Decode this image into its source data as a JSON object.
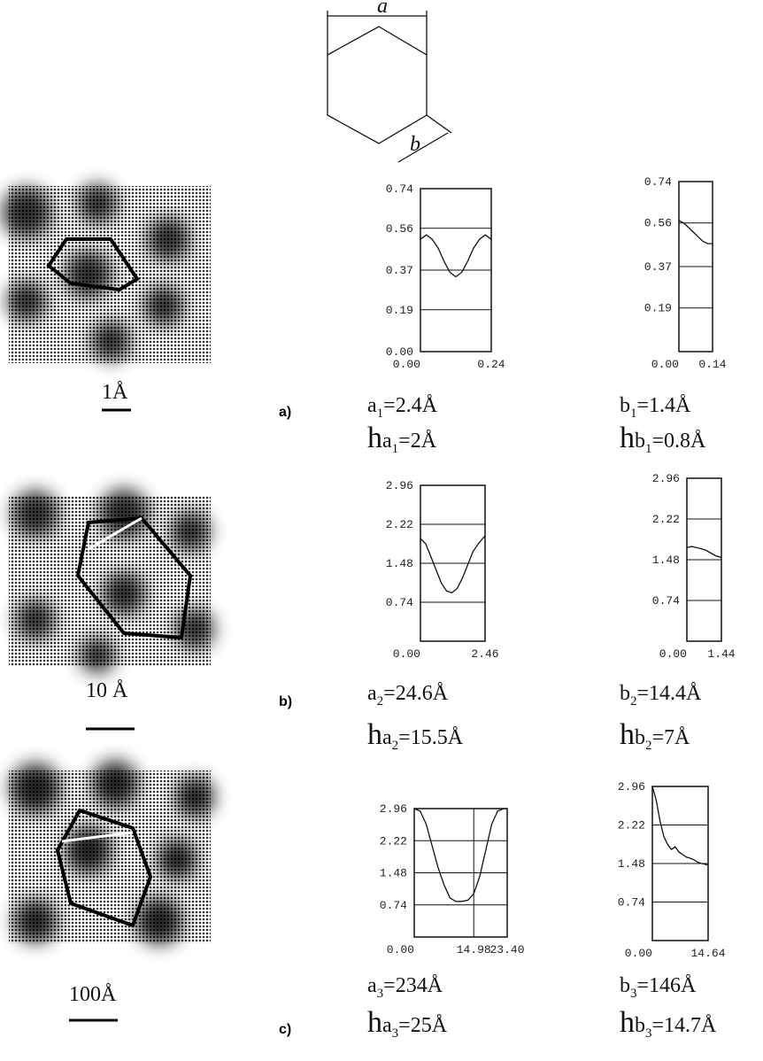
{
  "diagram": {
    "labels": [
      "a",
      "b"
    ]
  },
  "rows": [
    {
      "panel": "a)",
      "scale": "1Å",
      "a_plot": {
        "xlim": [
          0,
          0.24
        ],
        "xticks": [
          {
            "value": 0,
            "label": "0.00"
          },
          0.24
        ],
        "ylim": [
          0,
          0.74
        ],
        "yticks": [
          0.74,
          0.56,
          0.37,
          0.19
        ],
        "y0": {
          "value": 0,
          "label": "0.00"
        },
        "x": [
          0,
          0.02,
          0.04,
          0.06,
          0.08,
          0.1,
          0.12,
          0.14,
          0.16,
          0.18,
          0.2,
          0.22,
          0.24
        ],
        "values": [
          0.51,
          0.53,
          0.51,
          0.47,
          0.41,
          0.36,
          0.34,
          0.36,
          0.41,
          0.47,
          0.51,
          0.53,
          0.51
        ]
      },
      "b_plot": {
        "xlim": [
          0,
          0.14
        ],
        "xticks": [
          {
            "value": 0,
            "label": "0.00"
          },
          0.14
        ],
        "ylim": [
          0,
          0.74
        ],
        "yticks": [
          0.74,
          0.56,
          0.37,
          0.19
        ],
        "x": [
          0,
          0.02,
          0.04,
          0.06,
          0.08,
          0.1,
          0.12,
          0.14
        ],
        "values": [
          0.57,
          0.56,
          0.54,
          0.52,
          0.5,
          0.48,
          0.47,
          0.47
        ]
      },
      "a_text": {
        "sym": "a",
        "sub": "1",
        "eq": "=2.4Å"
      },
      "b_text": {
        "sym": "b",
        "sub": "1",
        "eq": "=1.4Å"
      },
      "ha_text": {
        "h": "h",
        "sym": "a",
        "sub": "1",
        "eq": "=2Å"
      },
      "hb_text": {
        "h": "h",
        "sym": "b",
        "sub": "1",
        "eq": "=0.8Å"
      }
    },
    {
      "panel": "b)",
      "scale": "10 Å",
      "a_plot": {
        "xlim": [
          0,
          2.46
        ],
        "xticks": [
          {
            "value": 0,
            "label": "0.00"
          },
          2.46
        ],
        "ylim": [
          0,
          2.96
        ],
        "yticks": [
          2.96,
          2.22,
          1.48,
          0.74
        ],
        "x": [
          0,
          0.2,
          0.4,
          0.6,
          0.8,
          1.0,
          1.2,
          1.4,
          1.6,
          1.8,
          2.0,
          2.2,
          2.46
        ],
        "values": [
          1.95,
          1.85,
          1.6,
          1.35,
          1.1,
          0.95,
          0.92,
          1.0,
          1.2,
          1.45,
          1.7,
          1.85,
          2.0
        ]
      },
      "b_plot": {
        "xlim": [
          0,
          1.44
        ],
        "xticks": [
          {
            "value": 0,
            "label": "0.00"
          },
          1.44
        ],
        "ylim": [
          0,
          2.96
        ],
        "yticks": [
          2.96,
          2.22,
          1.48,
          0.74
        ],
        "x": [
          0,
          0.2,
          0.4,
          0.6,
          0.8,
          1.0,
          1.2,
          1.44
        ],
        "values": [
          1.7,
          1.72,
          1.7,
          1.68,
          1.65,
          1.6,
          1.55,
          1.52
        ]
      },
      "a_text": {
        "sym": "a",
        "sub": "2",
        "eq": "=24.6Å"
      },
      "b_text": {
        "sym": "b",
        "sub": "2",
        "eq": "=14.4Å"
      },
      "ha_text": {
        "h": "h",
        "sym": "a",
        "sub": "2",
        "eq": "=15.5Å"
      },
      "hb_text": {
        "h": "h",
        "sym": "b",
        "sub": "2",
        "eq": "=7Å"
      }
    },
    {
      "panel": "c)",
      "scale": "100Å",
      "a_plot": {
        "xlim": [
          0,
          23.4
        ],
        "xticks": [
          {
            "value": 0,
            "label": "0.00"
          },
          14.98,
          {
            "value": 23.4,
            "label": "23.40"
          }
        ],
        "ylim": [
          0,
          2.96
        ],
        "yticks": [
          2.96,
          2.22,
          1.48,
          0.74
        ],
        "x": [
          0,
          1.5,
          3,
          4.5,
          6,
          7.5,
          9,
          10.5,
          12,
          13.5,
          15,
          16.5,
          18,
          19.5,
          21,
          22.5,
          23.4
        ],
        "values": [
          2.96,
          2.9,
          2.6,
          2.1,
          1.6,
          1.2,
          0.9,
          0.82,
          0.82,
          0.85,
          1.0,
          1.4,
          2.0,
          2.6,
          2.9,
          2.96,
          2.96
        ]
      },
      "b_plot": {
        "xlim": [
          0,
          14.64
        ],
        "xticks": [
          {
            "value": 0,
            "label": "0.00"
          },
          14.64
        ],
        "ylim": [
          0,
          2.96
        ],
        "yticks": [
          2.96,
          2.22,
          1.48,
          0.74
        ],
        "x": [
          0,
          1,
          2,
          3,
          4,
          5,
          6,
          7,
          8,
          9,
          10,
          11,
          12,
          13,
          14.64
        ],
        "values": [
          2.96,
          2.7,
          2.3,
          2.0,
          1.85,
          1.75,
          1.8,
          1.7,
          1.65,
          1.6,
          1.58,
          1.55,
          1.5,
          1.48,
          1.45
        ]
      },
      "a_text": {
        "sym": "a",
        "sub": "3",
        "eq": "=234Å"
      },
      "b_text": {
        "sym": "b",
        "sub": "3",
        "eq": "=146Å"
      },
      "ha_text": {
        "h": "h",
        "sym": "a",
        "sub": "3",
        "eq": "=25Å"
      },
      "hb_text": {
        "h": "h",
        "sym": "b",
        "sub": "3",
        "eq": "=14.7Å"
      }
    }
  ]
}
